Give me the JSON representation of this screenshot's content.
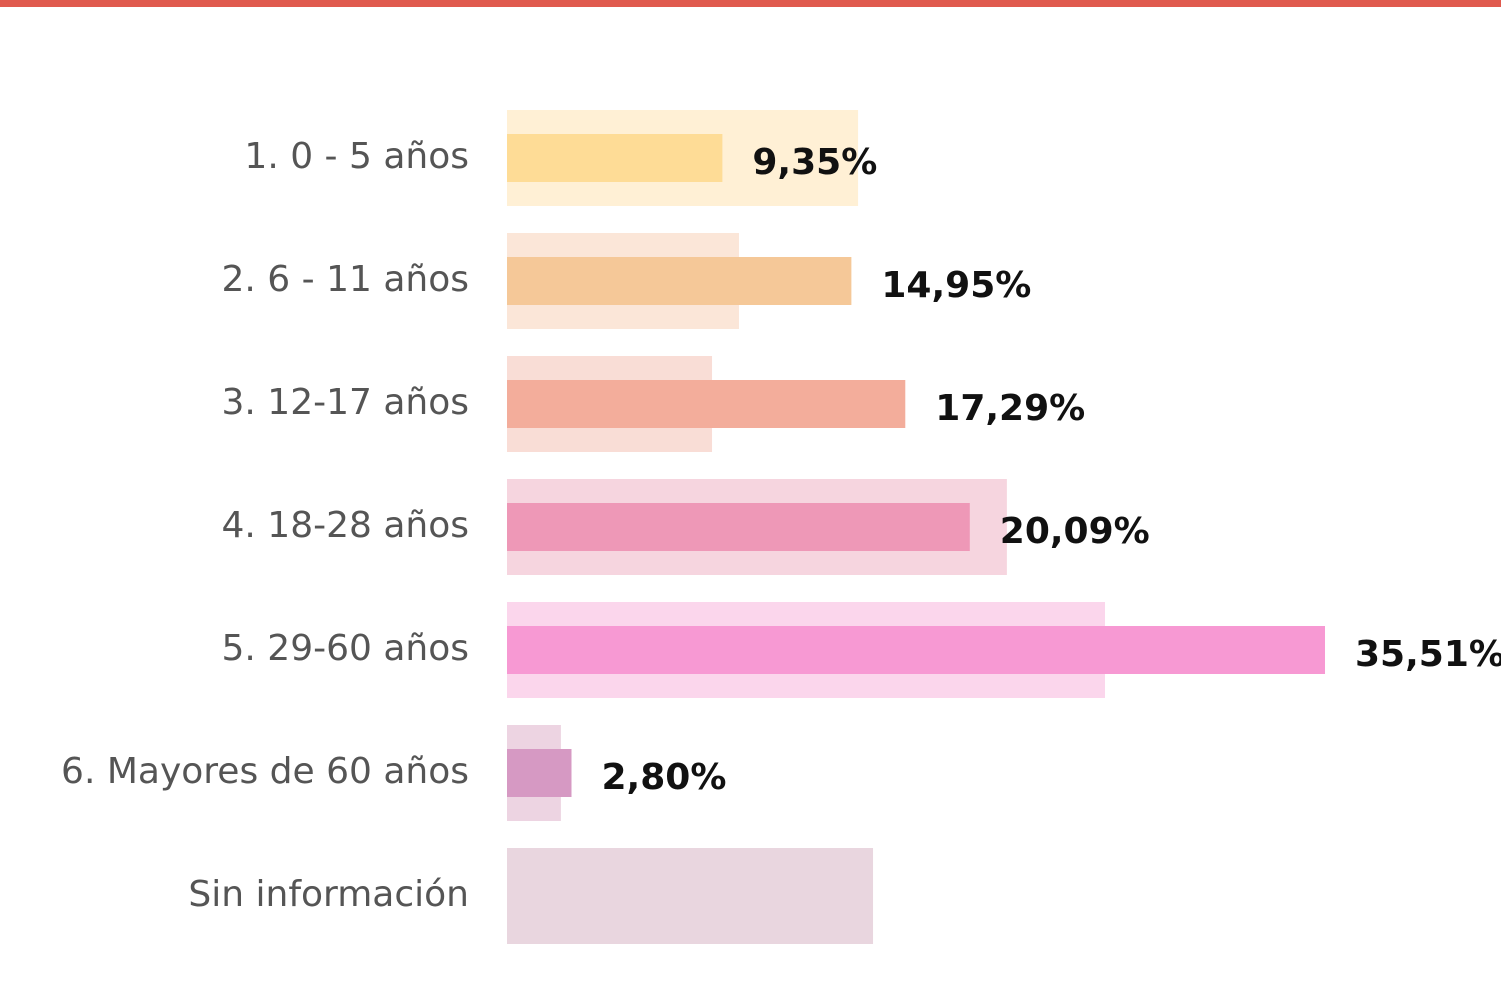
{
  "chart_data": {
    "type": "overlapped-bar",
    "categories": [
      "1. 0 - 5 años",
      "2. 6 - 11 años",
      "3. 12-17 años",
      "4. 18-28 años",
      "5. 29-60 años",
      "6. Mayores de 60 años",
      "Sin información"
    ],
    "series": [
      {
        "colors": [
          "#fff0d5",
          "#fbe6d8",
          "#f9ddd6",
          "#f6d5df",
          "#fbd6ec",
          "#edd4e2",
          "#e9d6df"
        ],
        "values": [
          15.24,
          10.07,
          8.9,
          21.7,
          25.96,
          2.34,
          15.89
        ]
      },
      {
        "colors": [
          "#fedc96",
          "#f5c898",
          "#f3ad9b",
          "#ee98b7",
          "#f799d3",
          "#d699c3",
          "#d699c3"
        ],
        "values": [
          9.35,
          14.95,
          17.29,
          20.09,
          35.51,
          2.8,
          null
        ],
        "value_labels": [
          "9,35%",
          "14,95%",
          "17,29%",
          "20,09%",
          "35,51%",
          "2,80%",
          null
        ]
      }
    ]
  }
}
